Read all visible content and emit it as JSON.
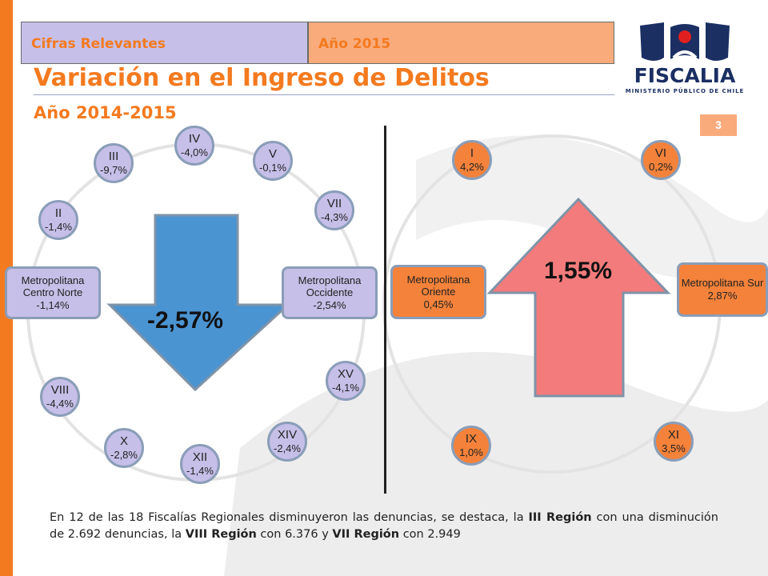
{
  "header": {
    "tab_left": "Cifras Relevantes",
    "tab_right": "Año 2015",
    "title": "Variación en el Ingreso de Delitos",
    "subtitle": "Año 2014-2015",
    "page_number": "3"
  },
  "logo": {
    "name": "FISCALIA",
    "tagline": "MINISTERIO PÚBLICO DE CHILE",
    "icon": "fiscalia-emblem"
  },
  "decrease_group": {
    "total": "-2,57%",
    "arrow_direction": "down",
    "regions": [
      {
        "name": "IV",
        "value": "-4,0%"
      },
      {
        "name": "V",
        "value": "-0,1%"
      },
      {
        "name": "III",
        "value": "-9,7%"
      },
      {
        "name": "VII",
        "value": "-4,3%"
      },
      {
        "name": "II",
        "value": "-1,4%"
      },
      {
        "name": "Metropolitana Centro Norte",
        "value": "-1,14%"
      },
      {
        "name": "Metropolitana Occidente",
        "value": "-2,54%"
      },
      {
        "name": "XV",
        "value": "-4,1%"
      },
      {
        "name": "VIII",
        "value": "-4,4%"
      },
      {
        "name": "XIV",
        "value": "-2,4%"
      },
      {
        "name": "X",
        "value": "-2,8%"
      },
      {
        "name": "XII",
        "value": "-1,4%"
      }
    ]
  },
  "increase_group": {
    "total": "1,55%",
    "arrow_direction": "up",
    "regions": [
      {
        "name": "I",
        "value": "4,2%"
      },
      {
        "name": "VI",
        "value": "0,2%"
      },
      {
        "name": "Metropolitana Oriente",
        "value": "0,45%"
      },
      {
        "name": "Metropolitana Sur",
        "value": "2,87%"
      },
      {
        "name": "IX",
        "value": "1,0%"
      },
      {
        "name": "XI",
        "value": "3,5%"
      }
    ]
  },
  "footnote": {
    "t1": "En 12 de las 18 Fiscalías Regionales disminuyeron las denuncias, se destaca, la ",
    "b1": "III Región",
    "t2": " con una disminución de 2.692 denuncias, la ",
    "b2": "VIII Región",
    "t3": " con 6.376 y ",
    "b3": "VII Región",
    "t4": " con 2.949"
  },
  "colors": {
    "accent_orange": "#f47a1f",
    "tab_purple": "#c6bfe8",
    "tab_peach": "#f9ab7c",
    "down_arrow": "#4b94d2",
    "up_arrow": "#f37b7b",
    "node_orange": "#f4823a",
    "logo_navy": "#1b2f63"
  }
}
